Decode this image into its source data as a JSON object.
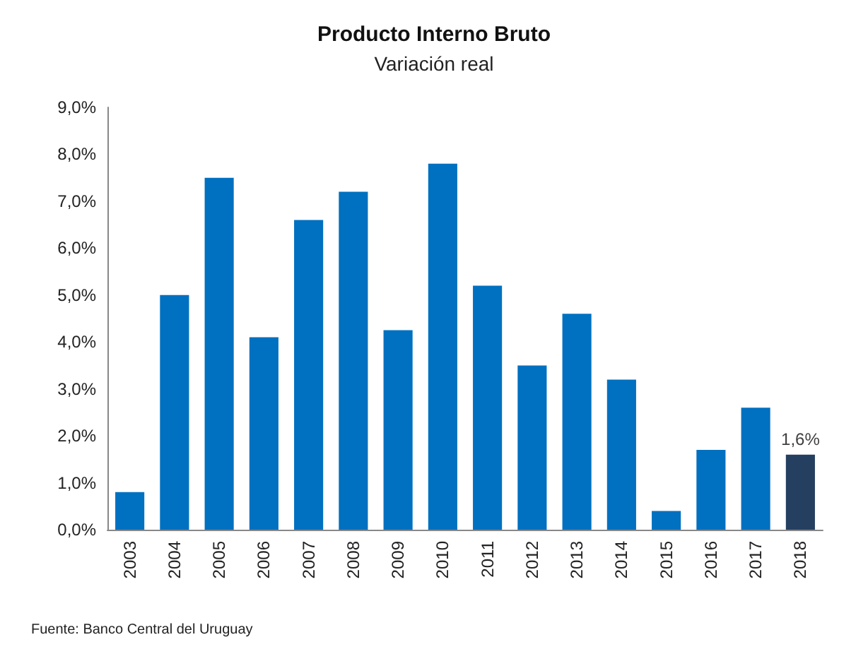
{
  "chart_data": {
    "type": "bar",
    "title": "Producto Interno Bruto",
    "subtitle": "Variación real",
    "categories": [
      "2003",
      "2004",
      "2005",
      "2006",
      "2007",
      "2008",
      "2009",
      "2010",
      "2011",
      "2012",
      "2013",
      "2014",
      "2015",
      "2016",
      "2017",
      "2018"
    ],
    "values": [
      0.8,
      5.0,
      7.5,
      4.1,
      6.6,
      7.2,
      4.25,
      7.8,
      5.2,
      3.5,
      4.6,
      3.2,
      0.4,
      1.7,
      2.6,
      1.6
    ],
    "colors": [
      "#0070c0",
      "#0070c0",
      "#0070c0",
      "#0070c0",
      "#0070c0",
      "#0070c0",
      "#0070c0",
      "#0070c0",
      "#0070c0",
      "#0070c0",
      "#0070c0",
      "#0070c0",
      "#0070c0",
      "#0070c0",
      "#0070c0",
      "#243f60"
    ],
    "value_labels": [
      null,
      null,
      null,
      null,
      null,
      null,
      null,
      null,
      null,
      null,
      null,
      null,
      null,
      null,
      null,
      "1,6%"
    ],
    "ylim": [
      0,
      9
    ],
    "yticks": [
      {
        "value": 0,
        "label": "0,0%"
      },
      {
        "value": 1,
        "label": "1,0%"
      },
      {
        "value": 2,
        "label": "2,0%"
      },
      {
        "value": 3,
        "label": "3,0%"
      },
      {
        "value": 4,
        "label": "4,0%"
      },
      {
        "value": 5,
        "label": "5,0%"
      },
      {
        "value": 6,
        "label": "6,0%"
      },
      {
        "value": 7,
        "label": "7,0%"
      },
      {
        "value": 8,
        "label": "8,0%"
      },
      {
        "value": 9,
        "label": "9,0%"
      }
    ],
    "annotations": [
      "Fuente: Banco Central del Uruguay"
    ]
  }
}
